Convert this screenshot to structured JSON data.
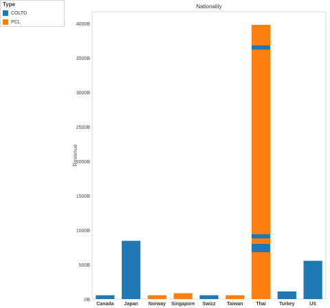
{
  "legend": {
    "title": "Type",
    "items": [
      {
        "label": "COLTD",
        "color": "#1f77b4"
      },
      {
        "label": "PCL",
        "color": "#ff7f0e"
      }
    ]
  },
  "chart_data": {
    "type": "bar",
    "stacked": true,
    "title": "Nationality",
    "ylabel": "Revenue",
    "xlabel": "",
    "ylim": [
      0,
      4170
    ],
    "yticks": [
      0,
      500,
      1000,
      1500,
      2000,
      2500,
      3000,
      3500,
      4000
    ],
    "ytick_labels": [
      "0B",
      "500B",
      "1000B",
      "1500B",
      "2000B",
      "2500B",
      "3000B",
      "3500B",
      "4000B"
    ],
    "grid": false,
    "categories": [
      "Canada",
      "Japan",
      "Norway",
      "Singapore",
      "Swizz",
      "Taiwan",
      "Thai",
      "Turkey",
      "US"
    ],
    "colors": {
      "COLTD": "#1f77b4",
      "PCL": "#ff7f0e"
    },
    "stacks": [
      [
        {
          "type": "COLTD",
          "value": 55
        }
      ],
      [
        {
          "type": "COLTD",
          "value": 845
        }
      ],
      [
        {
          "type": "PCL",
          "value": 55
        }
      ],
      [
        {
          "type": "PCL",
          "value": 85
        }
      ],
      [
        {
          "type": "COLTD",
          "value": 55
        }
      ],
      [
        {
          "type": "PCL",
          "value": 55
        }
      ],
      [
        {
          "type": "PCL",
          "value": 680
        },
        {
          "type": "COLTD",
          "value": 120
        },
        {
          "type": "PCL",
          "value": 80
        },
        {
          "type": "COLTD",
          "value": 60
        },
        {
          "type": "PCL",
          "value": 2680
        },
        {
          "type": "COLTD",
          "value": 60
        },
        {
          "type": "PCL",
          "value": 300
        }
      ],
      [
        {
          "type": "COLTD",
          "value": 110
        }
      ],
      [
        {
          "type": "COLTD",
          "value": 555
        }
      ]
    ]
  }
}
